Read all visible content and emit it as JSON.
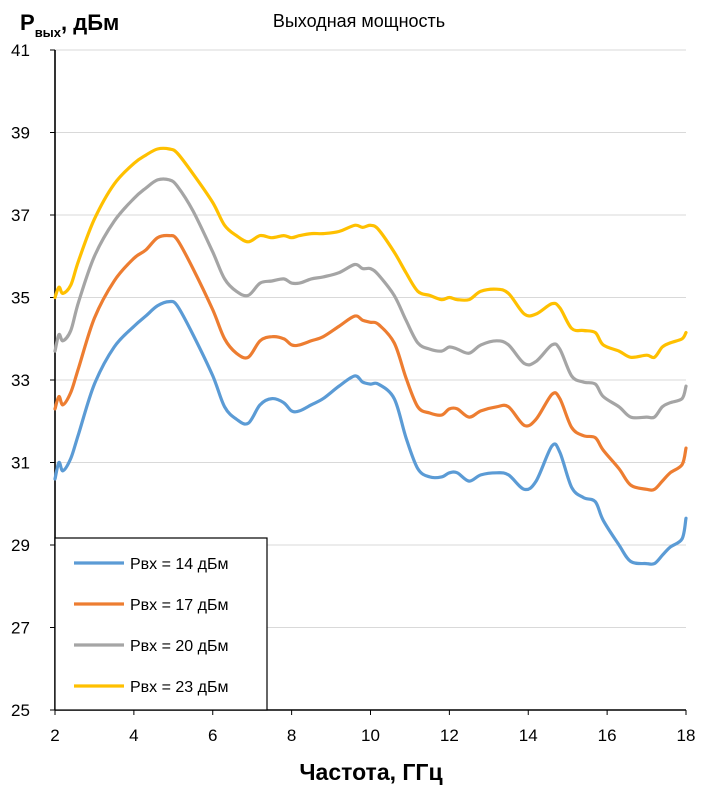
{
  "chart_data": {
    "type": "line",
    "title": "Выходная мощность",
    "ylabel": {
      "main": "P",
      "sub": "вых",
      "unit": ", дБм"
    },
    "xlabel": "Частота, ГГц",
    "xlim": [
      2,
      18
    ],
    "ylim": [
      25,
      41
    ],
    "x_ticks": [
      2,
      4,
      6,
      8,
      10,
      12,
      14,
      16,
      18
    ],
    "y_ticks": [
      25,
      27,
      29,
      31,
      33,
      35,
      37,
      39,
      41
    ],
    "grid": "horizontal",
    "legend_position": "bottom-left",
    "series": [
      {
        "name": "Pвх = 14 дБм",
        "color": "#5b9bd5",
        "points": [
          [
            2.0,
            30.6
          ],
          [
            2.1,
            31.0
          ],
          [
            2.2,
            30.8
          ],
          [
            2.4,
            31.1
          ],
          [
            2.6,
            31.7
          ],
          [
            3.0,
            32.9
          ],
          [
            3.5,
            33.8
          ],
          [
            4.0,
            34.3
          ],
          [
            4.3,
            34.55
          ],
          [
            4.6,
            34.8
          ],
          [
            4.9,
            34.9
          ],
          [
            5.1,
            34.8
          ],
          [
            5.5,
            34.1
          ],
          [
            6.0,
            33.1
          ],
          [
            6.3,
            32.35
          ],
          [
            6.6,
            32.05
          ],
          [
            6.9,
            31.95
          ],
          [
            7.2,
            32.4
          ],
          [
            7.5,
            32.55
          ],
          [
            7.8,
            32.45
          ],
          [
            8.0,
            32.25
          ],
          [
            8.2,
            32.25
          ],
          [
            8.5,
            32.4
          ],
          [
            8.8,
            32.55
          ],
          [
            9.2,
            32.85
          ],
          [
            9.6,
            33.1
          ],
          [
            9.8,
            32.95
          ],
          [
            10.0,
            32.9
          ],
          [
            10.2,
            32.9
          ],
          [
            10.6,
            32.55
          ],
          [
            10.9,
            31.6
          ],
          [
            11.2,
            30.85
          ],
          [
            11.5,
            30.65
          ],
          [
            11.8,
            30.65
          ],
          [
            12.0,
            30.75
          ],
          [
            12.2,
            30.75
          ],
          [
            12.5,
            30.55
          ],
          [
            12.8,
            30.7
          ],
          [
            13.2,
            30.75
          ],
          [
            13.5,
            30.7
          ],
          [
            13.9,
            30.35
          ],
          [
            14.2,
            30.55
          ],
          [
            14.6,
            31.4
          ],
          [
            14.8,
            31.25
          ],
          [
            15.1,
            30.4
          ],
          [
            15.4,
            30.15
          ],
          [
            15.7,
            30.05
          ],
          [
            15.9,
            29.6
          ],
          [
            16.3,
            29.0
          ],
          [
            16.6,
            28.6
          ],
          [
            17.0,
            28.55
          ],
          [
            17.2,
            28.55
          ],
          [
            17.4,
            28.75
          ],
          [
            17.6,
            28.95
          ],
          [
            17.9,
            29.15
          ],
          [
            18.0,
            29.65
          ]
        ]
      },
      {
        "name": "Pвх = 17 дБм",
        "color": "#ed7d31",
        "points": [
          [
            2.0,
            32.3
          ],
          [
            2.1,
            32.6
          ],
          [
            2.2,
            32.4
          ],
          [
            2.4,
            32.7
          ],
          [
            2.6,
            33.3
          ],
          [
            3.0,
            34.5
          ],
          [
            3.5,
            35.4
          ],
          [
            4.0,
            35.95
          ],
          [
            4.3,
            36.15
          ],
          [
            4.6,
            36.45
          ],
          [
            4.9,
            36.5
          ],
          [
            5.1,
            36.4
          ],
          [
            5.5,
            35.7
          ],
          [
            6.0,
            34.7
          ],
          [
            6.3,
            34.0
          ],
          [
            6.6,
            33.65
          ],
          [
            6.9,
            33.55
          ],
          [
            7.2,
            33.95
          ],
          [
            7.5,
            34.05
          ],
          [
            7.8,
            34.0
          ],
          [
            8.0,
            33.85
          ],
          [
            8.2,
            33.85
          ],
          [
            8.5,
            33.95
          ],
          [
            8.8,
            34.05
          ],
          [
            9.2,
            34.3
          ],
          [
            9.6,
            34.55
          ],
          [
            9.8,
            34.45
          ],
          [
            10.0,
            34.4
          ],
          [
            10.2,
            34.35
          ],
          [
            10.6,
            33.9
          ],
          [
            10.9,
            33.05
          ],
          [
            11.2,
            32.35
          ],
          [
            11.5,
            32.2
          ],
          [
            11.8,
            32.15
          ],
          [
            12.0,
            32.3
          ],
          [
            12.2,
            32.3
          ],
          [
            12.5,
            32.1
          ],
          [
            12.8,
            32.25
          ],
          [
            13.2,
            32.35
          ],
          [
            13.5,
            32.35
          ],
          [
            13.9,
            31.9
          ],
          [
            14.2,
            32.05
          ],
          [
            14.6,
            32.65
          ],
          [
            14.8,
            32.55
          ],
          [
            15.1,
            31.85
          ],
          [
            15.4,
            31.65
          ],
          [
            15.7,
            31.6
          ],
          [
            15.9,
            31.3
          ],
          [
            16.3,
            30.85
          ],
          [
            16.6,
            30.45
          ],
          [
            17.0,
            30.35
          ],
          [
            17.2,
            30.35
          ],
          [
            17.4,
            30.55
          ],
          [
            17.6,
            30.75
          ],
          [
            17.9,
            30.95
          ],
          [
            18.0,
            31.35
          ]
        ]
      },
      {
        "name": "Pвх = 20 дБм",
        "color": "#a5a5a5",
        "points": [
          [
            2.0,
            33.7
          ],
          [
            2.1,
            34.1
          ],
          [
            2.2,
            33.95
          ],
          [
            2.4,
            34.2
          ],
          [
            2.6,
            34.9
          ],
          [
            3.0,
            36.0
          ],
          [
            3.5,
            36.85
          ],
          [
            4.0,
            37.4
          ],
          [
            4.3,
            37.65
          ],
          [
            4.6,
            37.85
          ],
          [
            4.9,
            37.85
          ],
          [
            5.1,
            37.7
          ],
          [
            5.5,
            37.1
          ],
          [
            6.0,
            36.1
          ],
          [
            6.3,
            35.45
          ],
          [
            6.6,
            35.15
          ],
          [
            6.9,
            35.05
          ],
          [
            7.2,
            35.35
          ],
          [
            7.5,
            35.4
          ],
          [
            7.8,
            35.45
          ],
          [
            8.0,
            35.35
          ],
          [
            8.2,
            35.35
          ],
          [
            8.5,
            35.45
          ],
          [
            8.8,
            35.5
          ],
          [
            9.2,
            35.6
          ],
          [
            9.6,
            35.8
          ],
          [
            9.8,
            35.7
          ],
          [
            10.0,
            35.7
          ],
          [
            10.2,
            35.55
          ],
          [
            10.6,
            35.05
          ],
          [
            10.9,
            34.45
          ],
          [
            11.2,
            33.9
          ],
          [
            11.5,
            33.75
          ],
          [
            11.8,
            33.7
          ],
          [
            12.0,
            33.8
          ],
          [
            12.2,
            33.75
          ],
          [
            12.5,
            33.65
          ],
          [
            12.8,
            33.85
          ],
          [
            13.2,
            33.95
          ],
          [
            13.5,
            33.85
          ],
          [
            13.9,
            33.4
          ],
          [
            14.2,
            33.45
          ],
          [
            14.6,
            33.85
          ],
          [
            14.8,
            33.75
          ],
          [
            15.1,
            33.1
          ],
          [
            15.4,
            32.95
          ],
          [
            15.7,
            32.9
          ],
          [
            15.9,
            32.6
          ],
          [
            16.3,
            32.35
          ],
          [
            16.6,
            32.1
          ],
          [
            17.0,
            32.1
          ],
          [
            17.2,
            32.1
          ],
          [
            17.4,
            32.35
          ],
          [
            17.6,
            32.45
          ],
          [
            17.9,
            32.55
          ],
          [
            18.0,
            32.85
          ]
        ]
      },
      {
        "name": "Pвх = 23 дБм",
        "color": "#ffc000",
        "points": [
          [
            2.0,
            35.0
          ],
          [
            2.1,
            35.25
          ],
          [
            2.2,
            35.1
          ],
          [
            2.4,
            35.3
          ],
          [
            2.6,
            35.9
          ],
          [
            3.0,
            36.9
          ],
          [
            3.5,
            37.75
          ],
          [
            4.0,
            38.25
          ],
          [
            4.3,
            38.45
          ],
          [
            4.6,
            38.6
          ],
          [
            4.9,
            38.6
          ],
          [
            5.1,
            38.5
          ],
          [
            5.5,
            38.0
          ],
          [
            6.0,
            37.3
          ],
          [
            6.3,
            36.75
          ],
          [
            6.6,
            36.5
          ],
          [
            6.9,
            36.35
          ],
          [
            7.2,
            36.5
          ],
          [
            7.5,
            36.45
          ],
          [
            7.8,
            36.5
          ],
          [
            8.0,
            36.45
          ],
          [
            8.2,
            36.5
          ],
          [
            8.5,
            36.55
          ],
          [
            8.8,
            36.55
          ],
          [
            9.2,
            36.6
          ],
          [
            9.6,
            36.75
          ],
          [
            9.8,
            36.7
          ],
          [
            10.0,
            36.75
          ],
          [
            10.2,
            36.65
          ],
          [
            10.6,
            36.1
          ],
          [
            10.9,
            35.6
          ],
          [
            11.2,
            35.15
          ],
          [
            11.5,
            35.05
          ],
          [
            11.8,
            34.95
          ],
          [
            12.0,
            35.0
          ],
          [
            12.2,
            34.95
          ],
          [
            12.5,
            34.95
          ],
          [
            12.8,
            35.15
          ],
          [
            13.2,
            35.2
          ],
          [
            13.5,
            35.1
          ],
          [
            13.9,
            34.6
          ],
          [
            14.2,
            34.6
          ],
          [
            14.6,
            34.85
          ],
          [
            14.8,
            34.75
          ],
          [
            15.1,
            34.25
          ],
          [
            15.4,
            34.2
          ],
          [
            15.7,
            34.15
          ],
          [
            15.9,
            33.85
          ],
          [
            16.3,
            33.7
          ],
          [
            16.6,
            33.55
          ],
          [
            17.0,
            33.6
          ],
          [
            17.2,
            33.55
          ],
          [
            17.4,
            33.8
          ],
          [
            17.6,
            33.9
          ],
          [
            17.9,
            34.0
          ],
          [
            18.0,
            34.15
          ]
        ]
      }
    ]
  }
}
